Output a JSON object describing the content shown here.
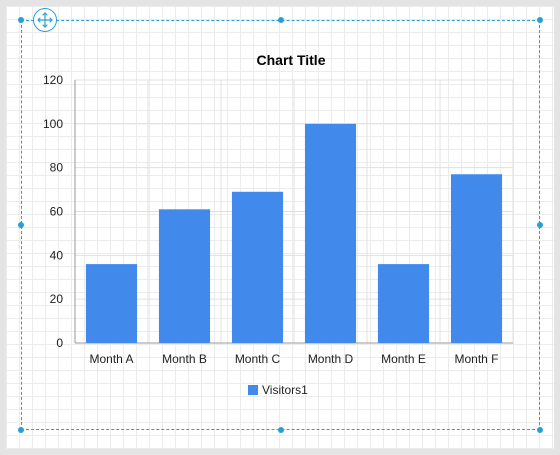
{
  "chart_data": {
    "type": "bar",
    "title": "Chart Title",
    "categories": [
      "Month A",
      "Month B",
      "Month C",
      "Month D",
      "Month E",
      "Month F"
    ],
    "series": [
      {
        "name": "Visitors1",
        "values": [
          36,
          61,
          69,
          100,
          36,
          77
        ],
        "color": "#4189ea"
      }
    ],
    "xlabel": "",
    "ylabel": "",
    "ylim": [
      0,
      120
    ],
    "yticks": [
      "0",
      "20",
      "40",
      "60",
      "80",
      "100",
      "120"
    ],
    "grid": true,
    "legend_position": "bottom"
  },
  "colors": {
    "selection": "#2a9fd6",
    "bar": "#4189ea",
    "gridline": "#e0e0e0"
  },
  "icons": {
    "move_handle": "move-arrows-icon"
  }
}
